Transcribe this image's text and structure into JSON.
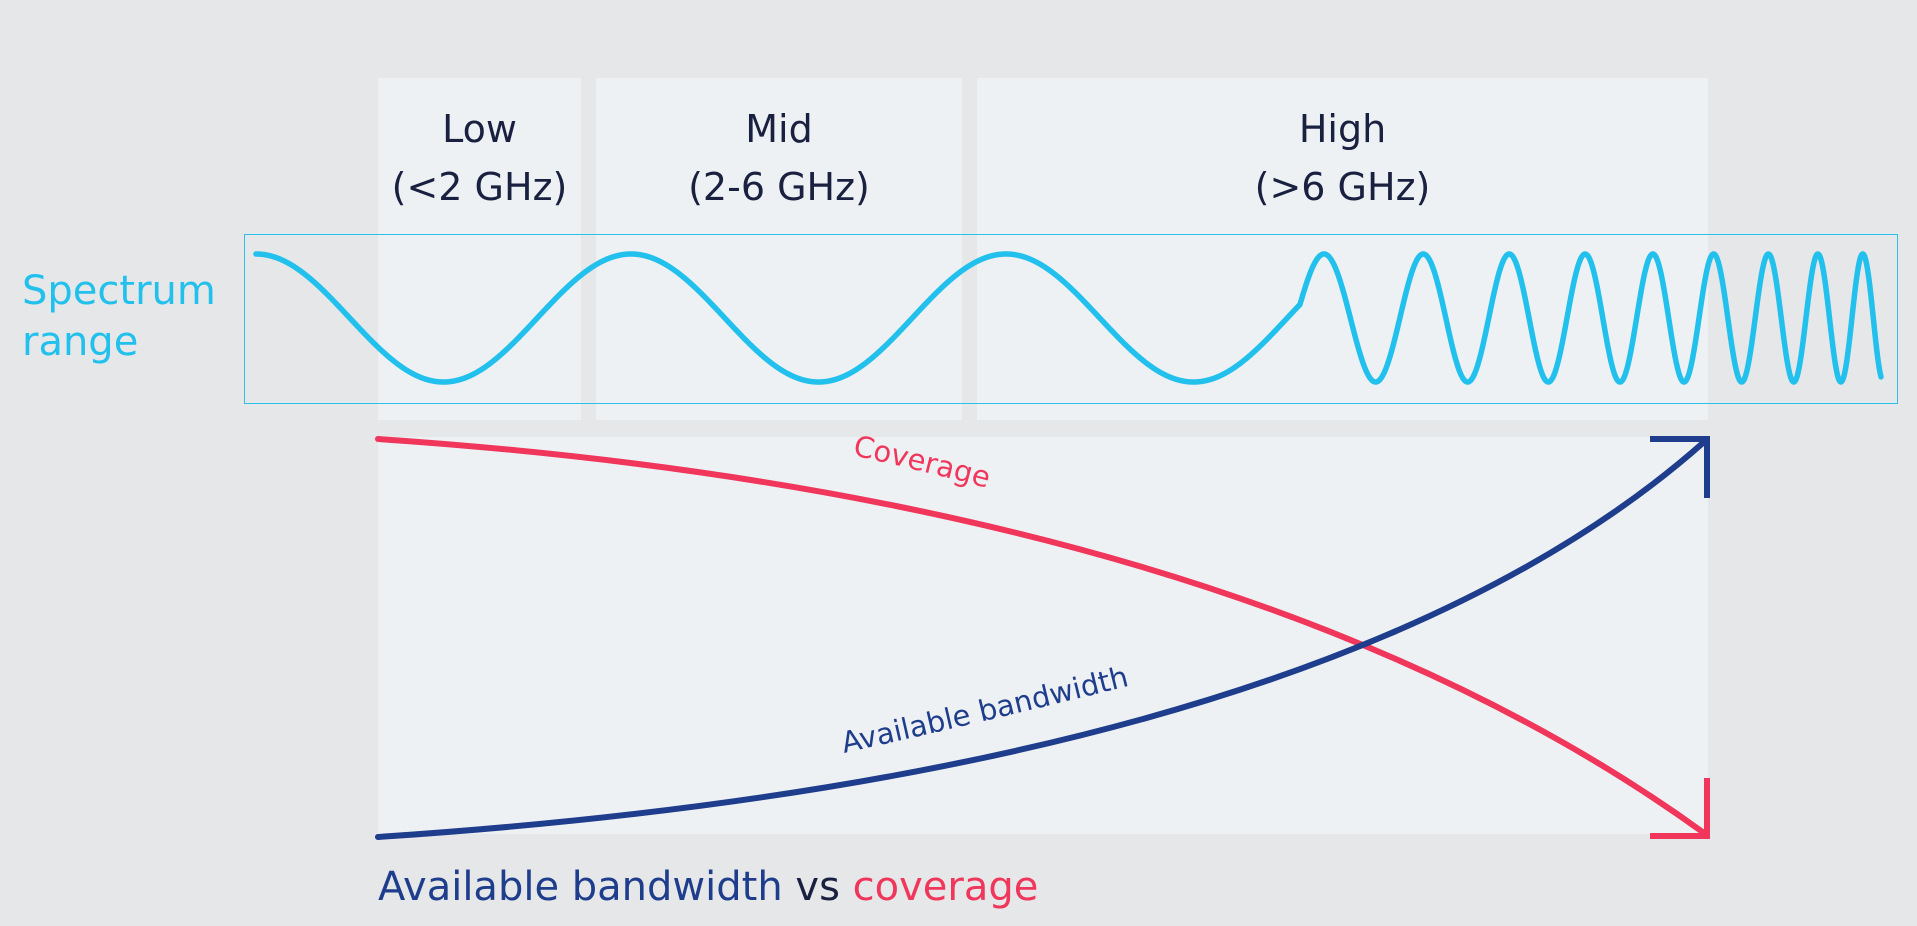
{
  "bands": [
    {
      "name": "Low",
      "range": "(<2 GHz)"
    },
    {
      "name": "Mid",
      "range": "(2-6 GHz)"
    },
    {
      "name": "High",
      "range": "(>6 GHz)"
    }
  ],
  "spectrum": {
    "label_line1": "Spectrum",
    "label_line2": "range"
  },
  "curves": {
    "coverage_label": "Coverage",
    "bandwidth_label": "Available bandwidth"
  },
  "caption": {
    "part1": "Available bandwidth",
    "part2": "vs",
    "part3": "coverage"
  },
  "colors": {
    "wave": "#22c0ec",
    "coverage": "#f0365a",
    "bandwidth": "#1e3d8c",
    "panel": "#eef1f4",
    "background": "#e6e7e8"
  }
}
